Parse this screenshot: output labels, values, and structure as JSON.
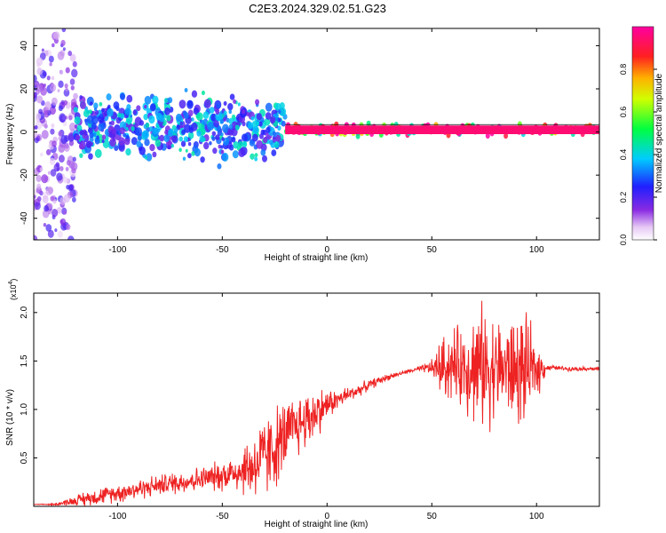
{
  "figure_title": "C2E3.2024.329.02.51.G23",
  "chart_data": [
    {
      "type": "heatmap",
      "title": "C2E3.2024.329.02.51.G23",
      "xlabel": "Height of straight line (km)",
      "ylabel": "Frequency (Hz)",
      "xlim": [
        -140,
        130
      ],
      "ylim": [
        -50,
        48
      ],
      "x_ticks": [
        -100,
        -50,
        0,
        50,
        100
      ],
      "y_ticks": [
        -40,
        -20,
        0,
        20,
        40
      ],
      "colorbar": {
        "label": "Normalized spectral amplitude",
        "range": [
          0,
          1
        ],
        "ticks": [
          0.0,
          0.2,
          0.4,
          0.6,
          0.8
        ],
        "tick_labels": [
          "0.0",
          "0.2",
          "0.4",
          "0.6",
          "0.8"
        ]
      },
      "bands": [
        {
          "x_start": -140,
          "x_end": -120,
          "freq_center": 0,
          "freq_halfwidth": 48,
          "amplitude": 0.15
        },
        {
          "x_start": -120,
          "x_end": -20,
          "freq_center": 2,
          "freq_halfwidth": 10,
          "amplitude": 0.35
        },
        {
          "x_start": -20,
          "x_end": 130,
          "freq_center": 1,
          "freq_halfwidth": 2,
          "amplitude": 0.95
        }
      ]
    },
    {
      "type": "line",
      "xlabel": "Height of straight line (km)",
      "ylabel": "SNR (10 * v/v)",
      "y_multiplier": "(x10",
      "y_multiplier_exp": "4",
      "y_multiplier_close": ")",
      "xlim": [
        -140,
        130
      ],
      "ylim": [
        0,
        2.2
      ],
      "x_ticks": [
        -100,
        -50,
        0,
        50,
        100
      ],
      "y_ticks": [
        0.5,
        1.0,
        1.5,
        2.0
      ],
      "y_tick_labels": [
        "0.5",
        "1.0",
        "1.5",
        "2.0"
      ],
      "series": [
        {
          "color": "#ee2222",
          "x": [
            -140,
            -130,
            -125,
            -120,
            -115,
            -110,
            -105,
            -100,
            -95,
            -90,
            -85,
            -80,
            -75,
            -70,
            -65,
            -60,
            -55,
            -50,
            -45,
            -40,
            -35,
            -30,
            -25,
            -20,
            -15,
            -10,
            -5,
            0,
            5,
            10,
            15,
            20,
            25,
            30,
            35,
            40,
            45,
            50,
            55,
            60,
            65,
            70,
            75,
            80,
            85,
            90,
            95,
            100,
            105,
            110,
            115,
            120,
            125,
            130
          ],
          "y": [
            0.02,
            0.02,
            0.04,
            0.06,
            0.08,
            0.1,
            0.12,
            0.14,
            0.16,
            0.18,
            0.2,
            0.22,
            0.24,
            0.25,
            0.27,
            0.28,
            0.3,
            0.32,
            0.35,
            0.38,
            0.42,
            0.5,
            0.6,
            0.72,
            0.82,
            0.9,
            0.97,
            1.05,
            1.1,
            1.15,
            1.2,
            1.25,
            1.3,
            1.34,
            1.37,
            1.4,
            1.42,
            1.43,
            1.44,
            1.45,
            1.45,
            1.45,
            1.44,
            1.43,
            1.42,
            1.4,
            1.4,
            1.42,
            1.43,
            1.43,
            1.42,
            1.42,
            1.42,
            1.42
          ],
          "noise": [
            0.0,
            0.01,
            0.03,
            0.05,
            0.08,
            0.08,
            0.08,
            0.09,
            0.1,
            0.1,
            0.1,
            0.1,
            0.1,
            0.12,
            0.12,
            0.12,
            0.13,
            0.15,
            0.18,
            0.25,
            0.35,
            0.4,
            0.4,
            0.35,
            0.3,
            0.3,
            0.25,
            0.15,
            0.1,
            0.08,
            0.06,
            0.05,
            0.04,
            0.03,
            0.02,
            0.02,
            0.03,
            0.08,
            0.3,
            0.35,
            0.4,
            0.55,
            0.6,
            0.5,
            0.45,
            0.55,
            0.5,
            0.3,
            0.03,
            0.02,
            0.02,
            0.02,
            0.02,
            0.02
          ]
        }
      ]
    }
  ]
}
